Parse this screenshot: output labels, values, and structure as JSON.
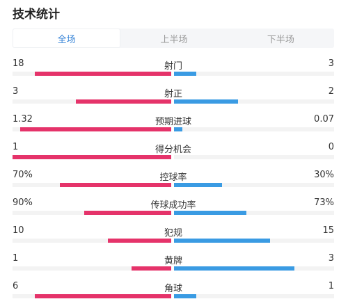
{
  "header": {
    "title": "技术统计"
  },
  "tabs": [
    {
      "label": "全场",
      "active": true
    },
    {
      "label": "上半场",
      "active": false
    },
    {
      "label": "下半场",
      "active": false
    }
  ],
  "colors": {
    "home": "#e5336a",
    "away": "#3a9be3",
    "accent": "#3a86d8"
  },
  "stats": [
    {
      "name": "射门",
      "home": "18",
      "away": "3",
      "home_fraction": 0.86,
      "away_fraction": 0.14
    },
    {
      "name": "射正",
      "home": "3",
      "away": "2",
      "home_fraction": 0.6,
      "away_fraction": 0.4
    },
    {
      "name": "预期进球",
      "home": "1.32",
      "away": "0.07",
      "home_fraction": 0.95,
      "away_fraction": 0.05
    },
    {
      "name": "得分机会",
      "home": "1",
      "away": "0",
      "home_fraction": 1.0,
      "away_fraction": 0.0
    },
    {
      "name": "控球率",
      "home": "70%",
      "away": "30%",
      "home_fraction": 0.7,
      "away_fraction": 0.3
    },
    {
      "name": "传球成功率",
      "home": "90%",
      "away": "73%",
      "home_fraction": 0.55,
      "away_fraction": 0.45
    },
    {
      "name": "犯规",
      "home": "10",
      "away": "15",
      "home_fraction": 0.4,
      "away_fraction": 0.6
    },
    {
      "name": "黄牌",
      "home": "1",
      "away": "3",
      "home_fraction": 0.25,
      "away_fraction": 0.75
    },
    {
      "name": "角球",
      "home": "6",
      "away": "1",
      "home_fraction": 0.86,
      "away_fraction": 0.14
    }
  ]
}
